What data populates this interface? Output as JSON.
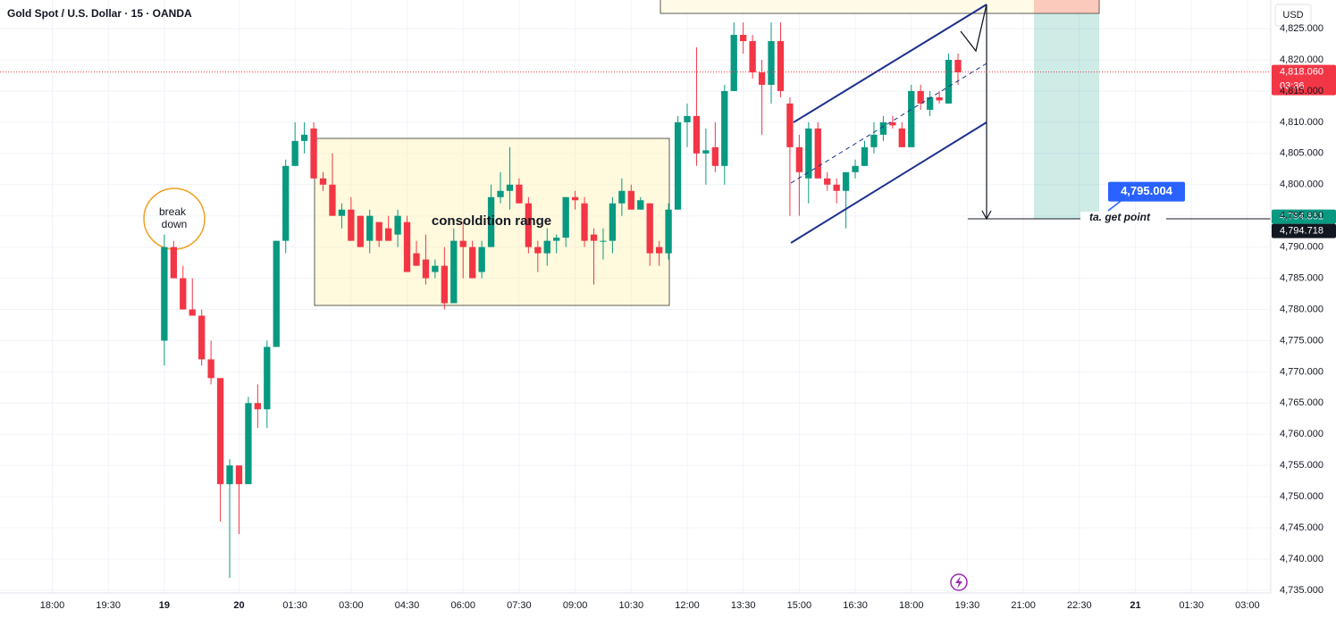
{
  "chart_data": {
    "type": "candlestick",
    "title": "Gold Spot / U.S. Dollar · 15 · OANDA",
    "currency": "USD",
    "up_color": "#089981",
    "down_color": "#f23645",
    "grid": true,
    "x": [
      0,
      1,
      2,
      3,
      4,
      5,
      6,
      7,
      8,
      9,
      10,
      11,
      12,
      13,
      14,
      15,
      16,
      17,
      18,
      19,
      20,
      21,
      22,
      23,
      24,
      25,
      26,
      27,
      28,
      29,
      30,
      31,
      32,
      33,
      34,
      35,
      36,
      37,
      38,
      39,
      40,
      41,
      42,
      43,
      44,
      45,
      46,
      47,
      48,
      49,
      50,
      51,
      52,
      53,
      54,
      55,
      56,
      57,
      58,
      59,
      60,
      61,
      62,
      63,
      64,
      65,
      66,
      67,
      68,
      69,
      70,
      71,
      72,
      73,
      74,
      75,
      76,
      77,
      78,
      79,
      80,
      81,
      82,
      83,
      84,
      85
    ],
    "open": [
      4775,
      4790,
      4785,
      4780,
      4779,
      4772,
      4769,
      4752,
      4755,
      4752,
      4765,
      4764,
      4774,
      4791,
      4803,
      4807,
      4809,
      4801,
      4800,
      4795,
      4796,
      4795,
      4791,
      4794,
      4793,
      4792,
      4794,
      4789,
      4788,
      4786,
      4787,
      4781,
      4791,
      4790,
      4786,
      4790,
      4798,
      4799,
      4800,
      4797,
      4790,
      4789,
      4791,
      4791.5,
      4798,
      4797,
      4792,
      4791,
      4791,
      4797,
      4799,
      4796,
      4797,
      4790,
      4789,
      4796,
      4810,
      4811,
      4805,
      4806,
      4803,
      4815,
      4824,
      4823,
      4818,
      4816,
      4823,
      4813,
      4806,
      4801,
      4809,
      4801,
      4800,
      4799,
      4802,
      4803,
      4806,
      4808,
      4810,
      4809,
      4806,
      4815,
      4812,
      4814,
      4813,
      4820
    ],
    "high": [
      4792,
      4791,
      4787,
      4785,
      4780,
      4775,
      4769,
      4756,
      4755,
      4766,
      4768,
      4775,
      4791,
      4804,
      4810,
      4810,
      4810,
      4802,
      4805,
      4797,
      4798,
      4795,
      4796,
      4794,
      4795,
      4796,
      4795,
      4791,
      4792,
      4788,
      4790,
      4793,
      4794,
      4791,
      4791,
      4800,
      4802,
      4806,
      4801,
      4798,
      4791,
      4793,
      4792,
      4798,
      4799,
      4798,
      4793,
      4793,
      4798,
      4801,
      4800,
      4798,
      4797,
      4791,
      4797,
      4811,
      4813,
      4822,
      4809,
      4810,
      4816,
      4826,
      4826,
      4824,
      4820,
      4826,
      4826,
      4814,
      4808,
      4810,
      4810,
      4802,
      4801,
      4802,
      4804,
      4807,
      4810,
      4811,
      4811,
      4810,
      4816,
      4816,
      4815,
      4815,
      4821,
      4821
    ],
    "low": [
      4771,
      4785,
      4780,
      4779,
      4771,
      4768,
      4746,
      4737,
      4744,
      4752,
      4761,
      4761,
      4774,
      4789,
      4803,
      4805,
      4801,
      4799,
      4795,
      4793,
      4791,
      4790,
      4789,
      4790,
      4791,
      4790,
      4786,
      4787,
      4784,
      4785,
      4780,
      4781,
      4785,
      4785,
      4785,
      4790,
      4797,
      4796,
      4797,
      4789,
      4786,
      4787,
      4789,
      4790,
      4796,
      4790,
      4784,
      4788,
      4789,
      4795,
      4796,
      4796,
      4787,
      4787,
      4788,
      4796,
      4806,
      4803,
      4800,
      4802,
      4800,
      4815,
      4821,
      4817,
      4808,
      4813,
      4814,
      4795,
      4795,
      4797,
      4801,
      4799,
      4797,
      4793,
      4801,
      4803,
      4805,
      4807,
      4809,
      4806,
      4806,
      4812,
      4811,
      4813,
      4813,
      4816
    ],
    "close": [
      4790,
      4785,
      4780,
      4779,
      4772,
      4769,
      4752,
      4755,
      4752,
      4765,
      4764,
      4774,
      4791,
      4803,
      4807,
      4808,
      4801,
      4800,
      4795,
      4796,
      4791,
      4790,
      4795,
      4791,
      4791,
      4795,
      4786,
      4787,
      4785,
      4787,
      4781,
      4791,
      4790,
      4785,
      4790,
      4798,
      4799,
      4800,
      4797,
      4790,
      4789,
      4791,
      4791.5,
      4798,
      4797.5,
      4791,
      4791,
      4791,
      4797,
      4799,
      4796,
      4797.5,
      4789,
      4789,
      4796,
      4810,
      4811,
      4805,
      4805.5,
      4803,
      4815,
      4824,
      4823,
      4818,
      4816,
      4823,
      4815,
      4806,
      4802,
      4809,
      4801,
      4800,
      4799,
      4802,
      4803,
      4806,
      4808,
      4810,
      4809.5,
      4806,
      4815,
      4813,
      4814,
      4813.5,
      4820,
      4818
    ],
    "xlim": [
      -17.6,
      118.5
    ],
    "xticks": [
      {
        "value": -12,
        "label": "18:00"
      },
      {
        "value": -6,
        "label": "19:30"
      },
      {
        "value": 0,
        "label": "19"
      },
      {
        "value": 8,
        "label": "20"
      },
      {
        "value": 14,
        "label": "01:30"
      },
      {
        "value": 20,
        "label": "03:00"
      },
      {
        "value": 26,
        "label": "04:30"
      },
      {
        "value": 32,
        "label": "06:00"
      },
      {
        "value": 38,
        "label": "07:30"
      },
      {
        "value": 44,
        "label": "09:00"
      },
      {
        "value": 50,
        "label": "10:30"
      },
      {
        "value": 56,
        "label": "12:00"
      },
      {
        "value": 62,
        "label": "13:30"
      },
      {
        "value": 68,
        "label": "15:00"
      },
      {
        "value": 74,
        "label": "16:30"
      },
      {
        "value": 80,
        "label": "18:00"
      },
      {
        "value": 86,
        "label": "19:30"
      },
      {
        "value": 92,
        "label": "21:00"
      },
      {
        "value": 98,
        "label": "22:30"
      },
      {
        "value": 104,
        "label": "21"
      },
      {
        "value": 110,
        "label": "01:30"
      },
      {
        "value": 116,
        "label": "03:00"
      }
    ],
    "ylim": [
      4734.56,
      4829.59
    ],
    "yticks": [
      {
        "value": 4735,
        "label": "4,735.000"
      },
      {
        "value": 4740,
        "label": "4,740.000"
      },
      {
        "value": 4745,
        "label": "4,745.000"
      },
      {
        "value": 4750,
        "label": "4,750.000"
      },
      {
        "value": 4755,
        "label": "4,755.000"
      },
      {
        "value": 4760,
        "label": "4,760.000"
      },
      {
        "value": 4765,
        "label": "4,765.000"
      },
      {
        "value": 4770,
        "label": "4,770.000"
      },
      {
        "value": 4775,
        "label": "4,775.000"
      },
      {
        "value": 4780,
        "label": "4,780.000"
      },
      {
        "value": 4785,
        "label": "4,785.000"
      },
      {
        "value": 4790,
        "label": "4,790.000"
      },
      {
        "value": 4795,
        "label": "4,795.000"
      },
      {
        "value": 4800,
        "label": "4,800.000"
      },
      {
        "value": 4805,
        "label": "4,805.000"
      },
      {
        "value": 4810,
        "label": "4,810.000"
      },
      {
        "value": 4815,
        "label": "4,815.000"
      },
      {
        "value": 4820,
        "label": "4,820.000"
      },
      {
        "value": 4825,
        "label": "4,825.000"
      }
    ],
    "price_labels": [
      {
        "value": 4818.06,
        "label": "4,818.060",
        "color": "#f23645"
      },
      {
        "value": 4794.861,
        "label": "4,794.861",
        "color": "#089981"
      },
      {
        "value": 4794.718,
        "label": "4,794.718",
        "color": "#131722"
      }
    ],
    "countdown": "03:36",
    "target_label": {
      "value": 4795.004,
      "label": "4,795.004",
      "color": "#2962ff"
    },
    "annotations": {
      "break_down": [
        "break",
        "down"
      ],
      "range": "consoldition range",
      "target": "ta. get point"
    }
  }
}
